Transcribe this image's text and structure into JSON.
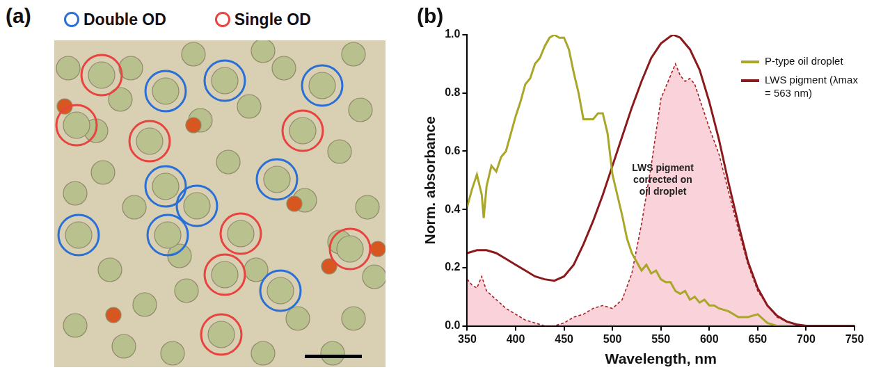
{
  "panel_a": {
    "label": "(a)",
    "legend": [
      {
        "name": "Double OD",
        "color": "#2a6fd6"
      },
      {
        "name": "Single OD",
        "color": "#e8433f"
      }
    ]
  },
  "panel_b": {
    "label": "(b)"
  },
  "chart_data": {
    "type": "line",
    "x_label": "Wavelength, nm",
    "y_label": "Norm. absorbance",
    "xlim": [
      350,
      750
    ],
    "xticks": [
      350,
      400,
      450,
      500,
      550,
      600,
      650,
      700,
      750
    ],
    "ylim": [
      0,
      1.0
    ],
    "yticks": [
      {
        "value": 0,
        "label": "0.0"
      },
      0.2,
      0.4,
      0.6,
      0.8,
      {
        "value": 1,
        "label": "1.0"
      }
    ],
    "grid": false,
    "legend": "top right",
    "series": [
      {
        "name": "LWS pigment corrected on oil droplet",
        "type": "area",
        "color": "#a81f24",
        "line_style": "dashed",
        "x": [
          350,
          355,
          360,
          365,
          370,
          380,
          390,
          400,
          410,
          420,
          430,
          440,
          450,
          460,
          470,
          480,
          490,
          500,
          510,
          520,
          530,
          540,
          550,
          560,
          565,
          570,
          575,
          580,
          585,
          590,
          600,
          610,
          620,
          630,
          640,
          650,
          660,
          670,
          680,
          690,
          700
        ],
        "values": [
          0.16,
          0.14,
          0.13,
          0.17,
          0.12,
          0.09,
          0.06,
          0.04,
          0.02,
          0.01,
          0.0,
          0.0,
          0.01,
          0.03,
          0.04,
          0.06,
          0.07,
          0.06,
          0.09,
          0.18,
          0.35,
          0.55,
          0.78,
          0.86,
          0.9,
          0.86,
          0.84,
          0.85,
          0.83,
          0.78,
          0.68,
          0.59,
          0.46,
          0.33,
          0.21,
          0.12,
          0.07,
          0.03,
          0.015,
          0.005,
          0.0
        ]
      },
      {
        "name": "P-type oil droplet",
        "type": "line",
        "color": "#aaa62a",
        "line_style": "solid",
        "x": [
          350,
          355,
          360,
          365,
          367,
          370,
          375,
          380,
          385,
          390,
          395,
          400,
          405,
          410,
          415,
          420,
          425,
          430,
          435,
          440,
          445,
          450,
          455,
          460,
          465,
          470,
          475,
          480,
          485,
          490,
          495,
          500,
          505,
          510,
          515,
          520,
          525,
          530,
          535,
          540,
          545,
          550,
          555,
          560,
          565,
          570,
          575,
          580,
          585,
          590,
          595,
          600,
          605,
          610,
          620,
          630,
          640,
          650,
          660,
          670,
          680
        ],
        "values": [
          0.41,
          0.47,
          0.52,
          0.45,
          0.37,
          0.48,
          0.55,
          0.53,
          0.58,
          0.6,
          0.66,
          0.72,
          0.77,
          0.83,
          0.85,
          0.9,
          0.92,
          0.96,
          0.99,
          1.0,
          0.99,
          0.99,
          0.95,
          0.87,
          0.8,
          0.71,
          0.71,
          0.71,
          0.73,
          0.73,
          0.66,
          0.52,
          0.45,
          0.38,
          0.3,
          0.25,
          0.22,
          0.19,
          0.21,
          0.18,
          0.19,
          0.16,
          0.15,
          0.15,
          0.12,
          0.11,
          0.12,
          0.09,
          0.1,
          0.08,
          0.09,
          0.07,
          0.07,
          0.06,
          0.05,
          0.03,
          0.03,
          0.04,
          0.01,
          0.0,
          0.0
        ]
      },
      {
        "name": "LWS pigment (λmax = 563 nm)",
        "type": "line",
        "color": "#8b1a1c",
        "line_style": "solid",
        "x": [
          350,
          360,
          370,
          380,
          390,
          400,
          410,
          420,
          430,
          440,
          450,
          460,
          470,
          480,
          490,
          500,
          510,
          520,
          530,
          540,
          550,
          560,
          563,
          570,
          580,
          590,
          600,
          610,
          620,
          630,
          640,
          650,
          660,
          670,
          680,
          690,
          700,
          750
        ],
        "values": [
          0.25,
          0.26,
          0.26,
          0.25,
          0.23,
          0.21,
          0.19,
          0.17,
          0.16,
          0.155,
          0.17,
          0.21,
          0.28,
          0.36,
          0.45,
          0.55,
          0.65,
          0.75,
          0.84,
          0.92,
          0.97,
          0.995,
          1.0,
          0.99,
          0.95,
          0.88,
          0.77,
          0.64,
          0.49,
          0.35,
          0.22,
          0.13,
          0.07,
          0.035,
          0.015,
          0.005,
          0.0,
          0.0
        ]
      }
    ]
  }
}
